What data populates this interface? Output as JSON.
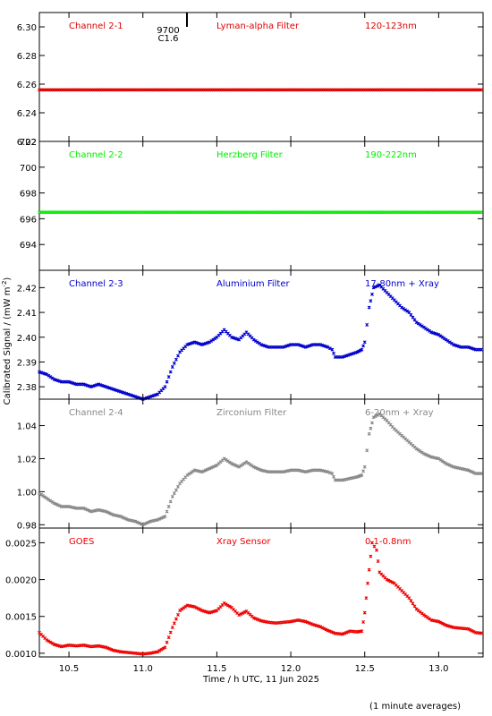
{
  "figure": {
    "ylabel": "Calibrated Signal / (mW m^-2)",
    "ylabel_main": "Calibrated Signal / (mW m",
    "ylabel_sup": "-2",
    "ylabel_close": ")",
    "xlabel": "Time / h UTC, 11 Jun 2025",
    "footnote": "(1 minute averages)",
    "marker_text_1": "9700",
    "marker_text_2": "C1.6",
    "x_ticks": [
      "10.5",
      "11.0",
      "11.5",
      "12.0",
      "12.5",
      "13.0"
    ]
  },
  "chart_data": [
    {
      "type": "scatter",
      "channel": "Channel 2-1",
      "filter": "Lyman-alpha Filter",
      "band": "120-123nm",
      "color": "#dd0000",
      "xlim": [
        10.3,
        13.3
      ],
      "ylim": [
        6.22,
        6.31
      ],
      "yticks": [
        "6.22",
        "6.24",
        "6.26",
        "6.28",
        "6.30"
      ],
      "points": [
        [
          10.3,
          6.256
        ],
        [
          10.5,
          6.256
        ],
        [
          10.75,
          6.256
        ],
        [
          11.0,
          6.256
        ],
        [
          11.25,
          6.256
        ],
        [
          11.5,
          6.256
        ],
        [
          11.75,
          6.256
        ],
        [
          12.0,
          6.256
        ],
        [
          12.25,
          6.256
        ],
        [
          12.5,
          6.256
        ],
        [
          12.75,
          6.256
        ],
        [
          13.0,
          6.256
        ],
        [
          13.3,
          6.256
        ]
      ]
    },
    {
      "type": "scatter",
      "channel": "Channel 2-2",
      "filter": "Herzberg Filter",
      "band": "190-222nm",
      "color": "#00ee00",
      "xlim": [
        10.3,
        13.3
      ],
      "ylim": [
        692,
        702
      ],
      "yticks": [
        "694",
        "696",
        "698",
        "700",
        "702"
      ],
      "points": [
        [
          10.3,
          696.5
        ],
        [
          10.5,
          696.5
        ],
        [
          10.75,
          696.5
        ],
        [
          11.0,
          696.5
        ],
        [
          11.25,
          696.5
        ],
        [
          11.5,
          696.5
        ],
        [
          11.75,
          696.5
        ],
        [
          12.0,
          696.5
        ],
        [
          12.25,
          696.5
        ],
        [
          12.5,
          696.5
        ],
        [
          12.75,
          696.5
        ],
        [
          13.0,
          696.5
        ],
        [
          13.3,
          696.5
        ]
      ]
    },
    {
      "type": "scatter",
      "channel": "Channel 2-3",
      "filter": "Aluminium Filter",
      "band": "17-80nm + Xray",
      "color": "#0000cc",
      "xlim": [
        10.3,
        13.3
      ],
      "ylim": [
        2.375,
        2.427
      ],
      "yticks": [
        "2.38",
        "2.39",
        "2.40",
        "2.41",
        "2.42"
      ],
      "points": [
        [
          10.3,
          2.386
        ],
        [
          10.35,
          2.385
        ],
        [
          10.4,
          2.383
        ],
        [
          10.45,
          2.382
        ],
        [
          10.5,
          2.382
        ],
        [
          10.55,
          2.381
        ],
        [
          10.6,
          2.381
        ],
        [
          10.65,
          2.38
        ],
        [
          10.7,
          2.381
        ],
        [
          10.75,
          2.38
        ],
        [
          10.8,
          2.379
        ],
        [
          10.85,
          2.378
        ],
        [
          10.9,
          2.377
        ],
        [
          10.95,
          2.376
        ],
        [
          11.0,
          2.375
        ],
        [
          11.05,
          2.376
        ],
        [
          11.1,
          2.377
        ],
        [
          11.15,
          2.38
        ],
        [
          11.2,
          2.388
        ],
        [
          11.25,
          2.394
        ],
        [
          11.3,
          2.397
        ],
        [
          11.35,
          2.398
        ],
        [
          11.4,
          2.397
        ],
        [
          11.45,
          2.398
        ],
        [
          11.5,
          2.4
        ],
        [
          11.55,
          2.403
        ],
        [
          11.6,
          2.4
        ],
        [
          11.65,
          2.399
        ],
        [
          11.7,
          2.402
        ],
        [
          11.75,
          2.399
        ],
        [
          11.8,
          2.397
        ],
        [
          11.85,
          2.396
        ],
        [
          11.9,
          2.396
        ],
        [
          11.95,
          2.396
        ],
        [
          12.0,
          2.397
        ],
        [
          12.05,
          2.397
        ],
        [
          12.1,
          2.396
        ],
        [
          12.15,
          2.397
        ],
        [
          12.2,
          2.397
        ],
        [
          12.25,
          2.396
        ],
        [
          12.28,
          2.395
        ],
        [
          12.3,
          2.392
        ],
        [
          12.35,
          2.392
        ],
        [
          12.4,
          2.393
        ],
        [
          12.45,
          2.394
        ],
        [
          12.48,
          2.395
        ],
        [
          12.5,
          2.398
        ],
        [
          12.53,
          2.412
        ],
        [
          12.56,
          2.42
        ],
        [
          12.6,
          2.421
        ],
        [
          12.65,
          2.418
        ],
        [
          12.7,
          2.415
        ],
        [
          12.75,
          2.412
        ],
        [
          12.8,
          2.41
        ],
        [
          12.85,
          2.406
        ],
        [
          12.9,
          2.404
        ],
        [
          12.95,
          2.402
        ],
        [
          13.0,
          2.401
        ],
        [
          13.05,
          2.399
        ],
        [
          13.1,
          2.397
        ],
        [
          13.15,
          2.396
        ],
        [
          13.2,
          2.396
        ],
        [
          13.25,
          2.395
        ],
        [
          13.3,
          2.395
        ]
      ]
    },
    {
      "type": "scatter",
      "channel": "Channel 2-4",
      "filter": "Zirconium Filter",
      "band": "6-20nm + Xray",
      "color": "#888888",
      "xlim": [
        10.3,
        13.3
      ],
      "ylim": [
        0.978,
        1.056
      ],
      "yticks": [
        "0.98",
        "1.00",
        "1.02",
        "1.04"
      ],
      "points": [
        [
          10.3,
          0.999
        ],
        [
          10.35,
          0.996
        ],
        [
          10.4,
          0.993
        ],
        [
          10.45,
          0.991
        ],
        [
          10.5,
          0.991
        ],
        [
          10.55,
          0.99
        ],
        [
          10.6,
          0.99
        ],
        [
          10.65,
          0.988
        ],
        [
          10.7,
          0.989
        ],
        [
          10.75,
          0.988
        ],
        [
          10.8,
          0.986
        ],
        [
          10.85,
          0.985
        ],
        [
          10.9,
          0.983
        ],
        [
          10.95,
          0.982
        ],
        [
          11.0,
          0.98
        ],
        [
          11.05,
          0.982
        ],
        [
          11.1,
          0.983
        ],
        [
          11.15,
          0.985
        ],
        [
          11.2,
          0.997
        ],
        [
          11.25,
          1.005
        ],
        [
          11.3,
          1.01
        ],
        [
          11.35,
          1.013
        ],
        [
          11.4,
          1.012
        ],
        [
          11.45,
          1.014
        ],
        [
          11.5,
          1.016
        ],
        [
          11.55,
          1.02
        ],
        [
          11.6,
          1.017
        ],
        [
          11.65,
          1.015
        ],
        [
          11.7,
          1.018
        ],
        [
          11.75,
          1.015
        ],
        [
          11.8,
          1.013
        ],
        [
          11.85,
          1.012
        ],
        [
          11.9,
          1.012
        ],
        [
          11.95,
          1.012
        ],
        [
          12.0,
          1.013
        ],
        [
          12.05,
          1.013
        ],
        [
          12.1,
          1.012
        ],
        [
          12.15,
          1.013
        ],
        [
          12.2,
          1.013
        ],
        [
          12.25,
          1.012
        ],
        [
          12.28,
          1.011
        ],
        [
          12.3,
          1.007
        ],
        [
          12.35,
          1.007
        ],
        [
          12.4,
          1.008
        ],
        [
          12.45,
          1.009
        ],
        [
          12.48,
          1.01
        ],
        [
          12.5,
          1.015
        ],
        [
          12.53,
          1.035
        ],
        [
          12.56,
          1.045
        ],
        [
          12.6,
          1.047
        ],
        [
          12.65,
          1.043
        ],
        [
          12.7,
          1.038
        ],
        [
          12.75,
          1.034
        ],
        [
          12.8,
          1.03
        ],
        [
          12.85,
          1.026
        ],
        [
          12.9,
          1.023
        ],
        [
          12.95,
          1.021
        ],
        [
          13.0,
          1.02
        ],
        [
          13.05,
          1.017
        ],
        [
          13.1,
          1.015
        ],
        [
          13.15,
          1.014
        ],
        [
          13.2,
          1.013
        ],
        [
          13.25,
          1.011
        ],
        [
          13.3,
          1.011
        ]
      ]
    },
    {
      "type": "scatter",
      "channel": "GOES",
      "filter": "Xray Sensor",
      "band": "0.1-0.8nm",
      "color": "#ee0000",
      "xlim": [
        10.3,
        13.3
      ],
      "ylim": [
        0.00095,
        0.0027
      ],
      "yticks": [
        "0.0010",
        "0.0015",
        "0.0020",
        "0.0025"
      ],
      "points": [
        [
          10.3,
          0.00128
        ],
        [
          10.35,
          0.00118
        ],
        [
          10.4,
          0.00112
        ],
        [
          10.45,
          0.00109
        ],
        [
          10.5,
          0.00111
        ],
        [
          10.55,
          0.0011
        ],
        [
          10.6,
          0.00111
        ],
        [
          10.65,
          0.00109
        ],
        [
          10.7,
          0.0011
        ],
        [
          10.75,
          0.00108
        ],
        [
          10.8,
          0.00104
        ],
        [
          10.85,
          0.00102
        ],
        [
          10.9,
          0.00101
        ],
        [
          10.95,
          0.001
        ],
        [
          11.0,
          0.00099
        ],
        [
          11.05,
          0.001
        ],
        [
          11.1,
          0.00102
        ],
        [
          11.15,
          0.00108
        ],
        [
          11.2,
          0.00135
        ],
        [
          11.25,
          0.00158
        ],
        [
          11.3,
          0.00165
        ],
        [
          11.35,
          0.00163
        ],
        [
          11.4,
          0.00158
        ],
        [
          11.45,
          0.00155
        ],
        [
          11.5,
          0.00158
        ],
        [
          11.55,
          0.00168
        ],
        [
          11.6,
          0.00162
        ],
        [
          11.65,
          0.00152
        ],
        [
          11.7,
          0.00157
        ],
        [
          11.75,
          0.00148
        ],
        [
          11.8,
          0.00144
        ],
        [
          11.85,
          0.00142
        ],
        [
          11.9,
          0.00141
        ],
        [
          11.95,
          0.00142
        ],
        [
          12.0,
          0.00143
        ],
        [
          12.05,
          0.00145
        ],
        [
          12.1,
          0.00143
        ],
        [
          12.15,
          0.00139
        ],
        [
          12.2,
          0.00136
        ],
        [
          12.25,
          0.00131
        ],
        [
          12.3,
          0.00127
        ],
        [
          12.35,
          0.00126
        ],
        [
          12.4,
          0.0013
        ],
        [
          12.45,
          0.00129
        ],
        [
          12.48,
          0.0013
        ],
        [
          12.5,
          0.00155
        ],
        [
          12.52,
          0.00195
        ],
        [
          12.55,
          0.0025
        ],
        [
          12.58,
          0.0024
        ],
        [
          12.6,
          0.0021
        ],
        [
          12.65,
          0.002
        ],
        [
          12.7,
          0.00195
        ],
        [
          12.75,
          0.00185
        ],
        [
          12.8,
          0.00175
        ],
        [
          12.85,
          0.0016
        ],
        [
          12.9,
          0.00152
        ],
        [
          12.95,
          0.00145
        ],
        [
          13.0,
          0.00143
        ],
        [
          13.05,
          0.00138
        ],
        [
          13.1,
          0.00135
        ],
        [
          13.15,
          0.00134
        ],
        [
          13.2,
          0.00133
        ],
        [
          13.25,
          0.00128
        ],
        [
          13.3,
          0.00127
        ]
      ]
    }
  ]
}
